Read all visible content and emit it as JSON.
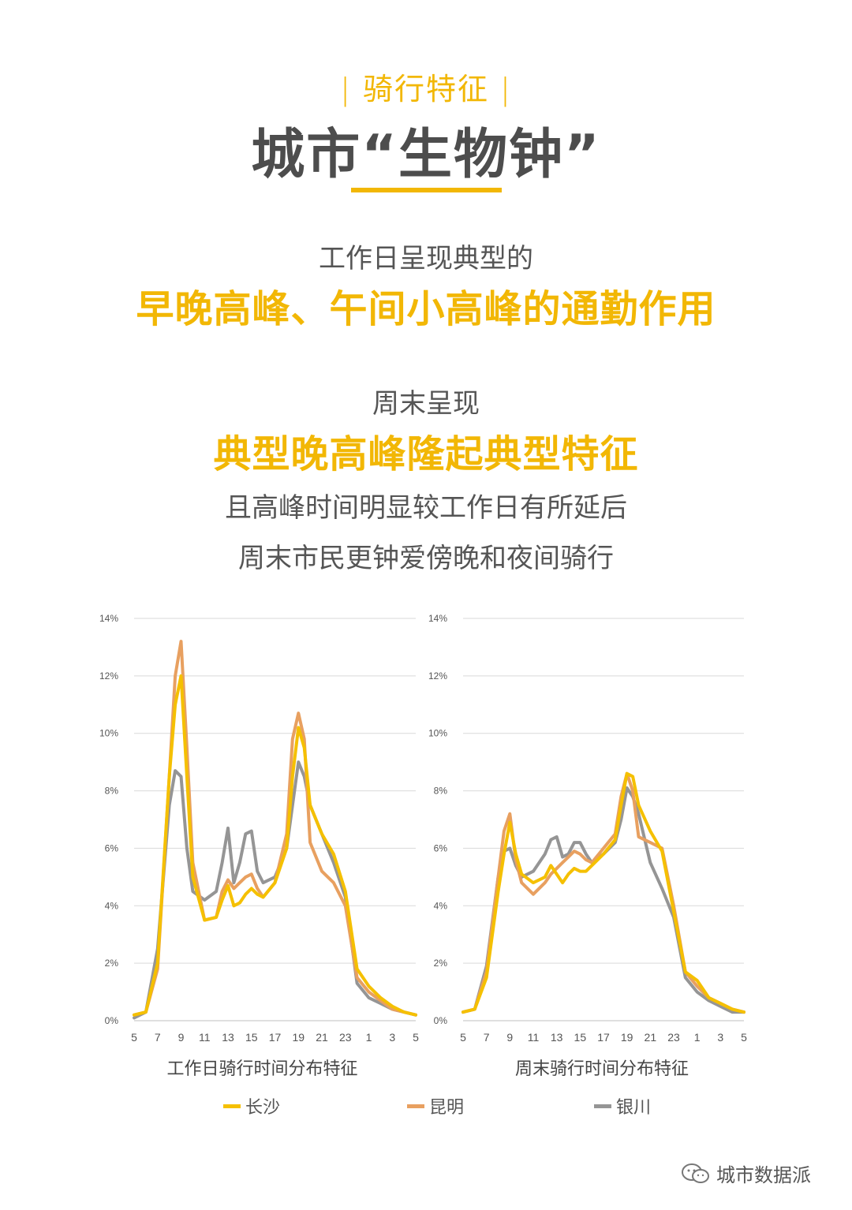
{
  "section_tag": "骑行特征",
  "main_title": "城市“生物钟”",
  "lines": {
    "l1": "工作日呈现典型的",
    "l2": "早晚高峰、午间小高峰的通勤作用",
    "l3": "周末呈现",
    "l4": "典型晚高峰隆起典型特征",
    "l5": "且高峰时间明显较工作日有所延后",
    "l6": "周末市民更钟爱傍晚和夜间骑行"
  },
  "legend": [
    {
      "name": "长沙",
      "color": "#f5c000"
    },
    {
      "name": "昆明",
      "color": "#e8a060"
    },
    {
      "name": "银川",
      "color": "#959595"
    }
  ],
  "watermark": "城市数据派",
  "chart_data": [
    {
      "type": "line",
      "title": "工作日骑行时间分布特征",
      "x": [
        5,
        6,
        7,
        8,
        8.5,
        9,
        9.5,
        10,
        11,
        12,
        12.5,
        13,
        13.5,
        14,
        14.5,
        15,
        15.5,
        16,
        17,
        18,
        18.5,
        19,
        19.5,
        20,
        21,
        22,
        23,
        24,
        25,
        26,
        27,
        28,
        29
      ],
      "x_tick_labels": [
        "5",
        "7",
        "9",
        "11",
        "13",
        "15",
        "17",
        "19",
        "21",
        "23",
        "1",
        "3",
        "5"
      ],
      "y_tick_labels": [
        "0%",
        "2%",
        "4%",
        "6%",
        "8%",
        "10%",
        "12%",
        "14%"
      ],
      "ylim": [
        0,
        14
      ],
      "series": [
        {
          "name": "长沙",
          "values": [
            0.2,
            0.3,
            2.0,
            8.5,
            11.0,
            12.0,
            8.5,
            5.0,
            3.5,
            3.6,
            4.2,
            4.7,
            4.0,
            4.1,
            4.4,
            4.6,
            4.4,
            4.3,
            4.8,
            6.0,
            8.5,
            10.2,
            9.5,
            7.5,
            6.5,
            5.8,
            4.5,
            1.8,
            1.2,
            0.8,
            0.5,
            0.3,
            0.2
          ]
        },
        {
          "name": "昆明",
          "values": [
            0.2,
            0.3,
            1.8,
            8.5,
            12.0,
            13.2,
            9.5,
            5.5,
            3.5,
            3.6,
            4.5,
            4.9,
            4.6,
            4.8,
            5.0,
            5.1,
            4.6,
            4.3,
            4.8,
            6.5,
            9.8,
            10.7,
            9.8,
            6.2,
            5.2,
            4.8,
            4.0,
            1.5,
            1.0,
            0.7,
            0.4,
            0.3,
            0.2
          ]
        },
        {
          "name": "银川",
          "values": [
            0.1,
            0.3,
            2.5,
            7.5,
            8.7,
            8.5,
            6.0,
            4.5,
            4.2,
            4.5,
            5.5,
            6.7,
            4.8,
            5.5,
            6.5,
            6.6,
            5.2,
            4.8,
            5.0,
            6.0,
            7.5,
            9.0,
            8.5,
            7.5,
            6.5,
            5.5,
            4.3,
            1.3,
            0.8,
            0.6,
            0.4,
            0.3,
            0.2
          ]
        }
      ]
    },
    {
      "type": "line",
      "title": "周末骑行时间分布特征",
      "x": [
        5,
        6,
        7,
        8,
        8.5,
        9,
        9.5,
        10,
        11,
        12,
        12.5,
        13,
        13.5,
        14,
        14.5,
        15,
        15.5,
        16,
        17,
        18,
        18.5,
        19,
        19.5,
        20,
        21,
        22,
        23,
        24,
        25,
        26,
        27,
        28,
        29
      ],
      "x_tick_labels": [
        "5",
        "7",
        "9",
        "11",
        "13",
        "15",
        "17",
        "19",
        "21",
        "23",
        "1",
        "3",
        "5"
      ],
      "y_tick_labels": [
        "0%",
        "2%",
        "4%",
        "6%",
        "8%",
        "10%",
        "12%",
        "14%"
      ],
      "ylim": [
        0,
        14
      ],
      "series": [
        {
          "name": "长沙",
          "values": [
            0.3,
            0.4,
            1.5,
            4.5,
            5.8,
            6.9,
            5.8,
            5.1,
            4.8,
            5.0,
            5.4,
            5.1,
            4.8,
            5.1,
            5.3,
            5.2,
            5.2,
            5.4,
            5.8,
            6.3,
            7.5,
            8.6,
            8.5,
            7.5,
            6.6,
            5.9,
            3.8,
            1.7,
            1.4,
            0.8,
            0.6,
            0.4,
            0.3
          ]
        },
        {
          "name": "昆明",
          "values": [
            0.3,
            0.4,
            1.7,
            5.0,
            6.6,
            7.2,
            5.6,
            4.8,
            4.4,
            4.8,
            5.1,
            5.3,
            5.5,
            5.7,
            5.9,
            5.8,
            5.6,
            5.5,
            6.0,
            6.5,
            7.8,
            8.6,
            8.0,
            6.4,
            6.2,
            6.0,
            4.0,
            1.7,
            1.2,
            0.8,
            0.6,
            0.4,
            0.3
          ]
        },
        {
          "name": "银川",
          "values": [
            0.3,
            0.4,
            1.9,
            5.0,
            5.9,
            6.0,
            5.4,
            5.0,
            5.2,
            5.8,
            6.3,
            6.4,
            5.7,
            5.8,
            6.2,
            6.2,
            5.8,
            5.5,
            5.8,
            6.2,
            7.0,
            8.1,
            7.8,
            7.2,
            5.5,
            4.6,
            3.6,
            1.5,
            1.0,
            0.7,
            0.5,
            0.3,
            0.3
          ]
        }
      ]
    }
  ]
}
